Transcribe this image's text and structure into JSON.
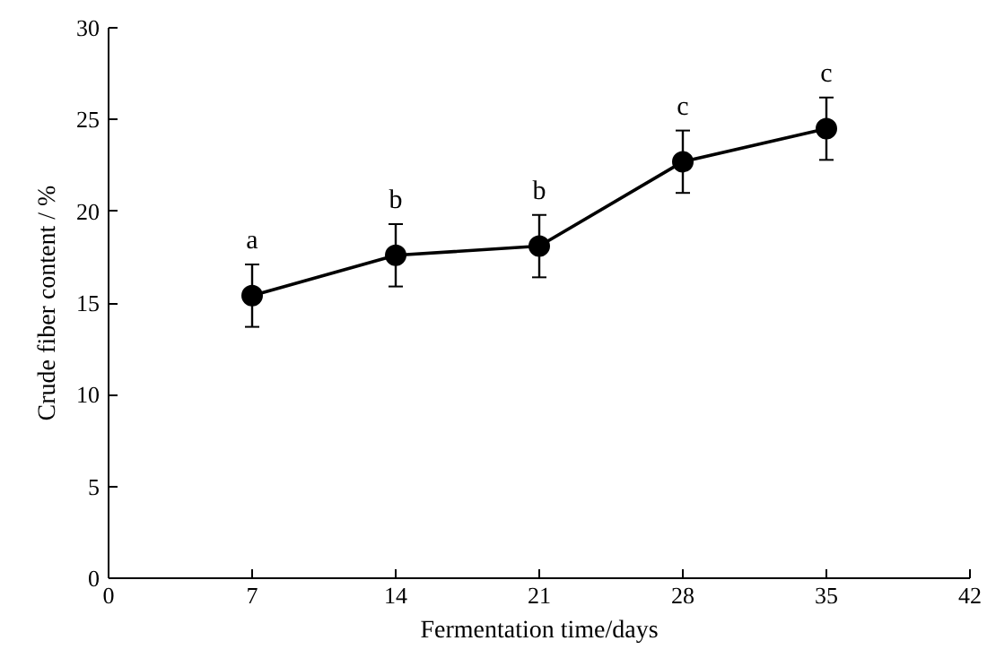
{
  "chart_data": {
    "type": "line",
    "xlabel": "Fermentation time/days",
    "ylabel": "Crude fiber content / %",
    "x": [
      7,
      14,
      21,
      28,
      35
    ],
    "series": [
      {
        "color": "#000000",
        "values": [
          15.4,
          17.6,
          18.1,
          22.7,
          24.5
        ],
        "errors": [
          1.7,
          1.7,
          1.7,
          1.7,
          1.7
        ]
      }
    ],
    "xlim": [
      0,
      42
    ],
    "xticks": [
      0,
      7,
      14,
      21,
      28,
      35,
      42
    ],
    "ylim": [
      0,
      30
    ],
    "yticks": [
      0,
      5,
      10,
      15,
      20,
      25,
      30
    ],
    "grid": false,
    "marker": "circle",
    "line_style": "solid",
    "annotations": [
      "a",
      "b",
      "b",
      "c",
      "c"
    ]
  }
}
